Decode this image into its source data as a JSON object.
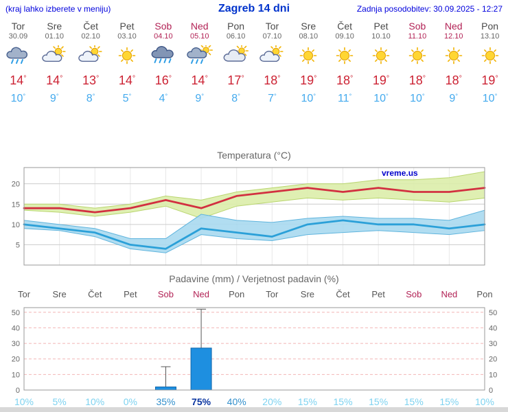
{
  "header": {
    "left_hint": "(kraj lahko izberete v meniju)",
    "title": "Zagreb 14 dni",
    "last_update": "Zadnja posodobitev: 30.09.2025 - 12:27"
  },
  "watermark": "vreme.us",
  "days": [
    {
      "name": "Tor",
      "date": "30.09",
      "weekend": false,
      "icon": "rain-cloud",
      "tmax": 14,
      "tmin": 10
    },
    {
      "name": "Sre",
      "date": "01.10",
      "weekend": false,
      "icon": "partly-cloudy",
      "tmax": 14,
      "tmin": 9
    },
    {
      "name": "Čet",
      "date": "02.10",
      "weekend": false,
      "icon": "partly-cloudy",
      "tmax": 13,
      "tmin": 8
    },
    {
      "name": "Pet",
      "date": "03.10",
      "weekend": false,
      "icon": "sunny",
      "tmax": 14,
      "tmin": 5
    },
    {
      "name": "Sob",
      "date": "04.10",
      "weekend": true,
      "icon": "heavy-rain",
      "tmax": 16,
      "tmin": 4
    },
    {
      "name": "Ned",
      "date": "05.10",
      "weekend": true,
      "icon": "sun-showers",
      "tmax": 14,
      "tmin": 9
    },
    {
      "name": "Pon",
      "date": "06.10",
      "weekend": false,
      "icon": "mostly-cloudy",
      "tmax": 17,
      "tmin": 8
    },
    {
      "name": "Tor",
      "date": "07.10",
      "weekend": false,
      "icon": "partly-cloudy",
      "tmax": 18,
      "tmin": 7
    },
    {
      "name": "Sre",
      "date": "08.10",
      "weekend": false,
      "icon": "sunny",
      "tmax": 19,
      "tmin": 10
    },
    {
      "name": "Čet",
      "date": "09.10",
      "weekend": false,
      "icon": "sunny",
      "tmax": 18,
      "tmin": 11
    },
    {
      "name": "Pet",
      "date": "10.10",
      "weekend": false,
      "icon": "sunny",
      "tmax": 19,
      "tmin": 10
    },
    {
      "name": "Sob",
      "date": "11.10",
      "weekend": true,
      "icon": "sunny",
      "tmax": 18,
      "tmin": 10
    },
    {
      "name": "Ned",
      "date": "12.10",
      "weekend": true,
      "icon": "sunny",
      "tmax": 18,
      "tmin": 9
    },
    {
      "name": "Pon",
      "date": "13.10",
      "weekend": false,
      "icon": "sunny",
      "tmax": 19,
      "tmin": 10
    }
  ],
  "chart_data": [
    {
      "type": "line",
      "title": "Temperatura (°C)",
      "x": [
        "Tor",
        "Sre",
        "Čet",
        "Pet",
        "Sob",
        "Ned",
        "Pon",
        "Tor",
        "Sre",
        "Čet",
        "Pet",
        "Sob",
        "Ned",
        "Pon"
      ],
      "series": [
        {
          "name": "temperatura max",
          "color": "#d23040",
          "values": [
            14,
            14,
            13,
            14,
            16,
            14,
            17,
            18,
            19,
            18,
            19,
            18,
            18,
            19
          ]
        },
        {
          "name": "temperatura min",
          "color": "#2ba0d8",
          "values": [
            10,
            9,
            8,
            5,
            4,
            9,
            8,
            7,
            10,
            11,
            10,
            10,
            9,
            10
          ]
        }
      ],
      "bands": [
        {
          "name": "max-range",
          "color": "#dcedaa",
          "edge": "#b9d56e",
          "upper": [
            15,
            15,
            14,
            15,
            17,
            16,
            18,
            19,
            20,
            20,
            21,
            21,
            21.5,
            23
          ],
          "lower": [
            13.5,
            13,
            12,
            13,
            14.5,
            11.5,
            14.5,
            15.5,
            16.5,
            16,
            16.5,
            16,
            15.5,
            16.5
          ]
        },
        {
          "name": "min-range",
          "color": "#a9d9ef",
          "edge": "#5fb4dd",
          "upper": [
            11,
            10,
            9,
            6.5,
            6.5,
            12.5,
            11,
            10.5,
            11.5,
            12,
            11.5,
            11.5,
            11,
            13.5
          ],
          "lower": [
            9,
            8.5,
            7,
            4,
            3,
            7.5,
            6.5,
            6,
            7.5,
            8,
            8.5,
            8,
            7.5,
            8.5
          ]
        }
      ],
      "ylim": [
        0,
        24
      ],
      "yticks": [
        5,
        10,
        15,
        20
      ],
      "grid": true,
      "legend": "none"
    },
    {
      "type": "bar",
      "title": "Padavine (mm) / Verjetnost padavin (%)",
      "categories": [
        "Tor",
        "Sre",
        "Čet",
        "Pet",
        "Sob",
        "Ned",
        "Pon",
        "Tor",
        "Sre",
        "Čet",
        "Pet",
        "Sob",
        "Ned",
        "Pon"
      ],
      "values": [
        0,
        0,
        0,
        0,
        2,
        27,
        0,
        0,
        0,
        0,
        0,
        0,
        0,
        0
      ],
      "range_max": [
        0,
        0,
        0,
        0,
        15,
        52,
        0,
        0,
        0,
        0,
        0,
        0,
        0,
        0
      ],
      "probability_percent": [
        10,
        5,
        10,
        0,
        35,
        75,
        40,
        20,
        15,
        15,
        15,
        15,
        15,
        10
      ],
      "ylim": [
        0,
        53
      ],
      "yticks": [
        0,
        10,
        20,
        30,
        40,
        50
      ],
      "bar_color": "#1e8fe0",
      "grid": true
    }
  ],
  "colors": {
    "header_text": "#0000dd",
    "weekday": "#4a4a4a",
    "weekend": "#b22255",
    "tmax": "#cc2233",
    "tmin": "#44aaee",
    "prob_low": "#7dd2f0",
    "prob_mid": "#3390cc",
    "prob_high": "#0a35a0"
  }
}
